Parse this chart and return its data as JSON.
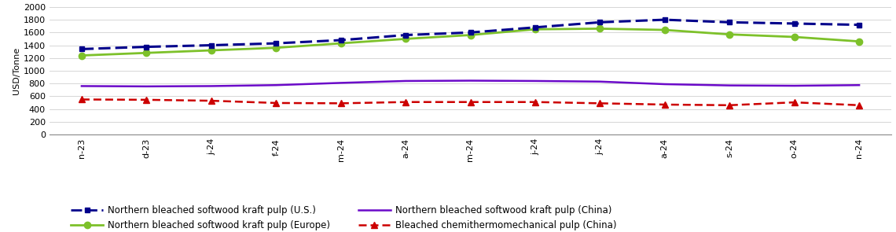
{
  "x_labels": [
    "n-23",
    "d-23",
    "j-24",
    "f-24",
    "m-24",
    "a-24",
    "m-24",
    "j-24",
    "j-24",
    "a-24",
    "s-24",
    "o-24",
    "n-24"
  ],
  "us_values": [
    1340,
    1375,
    1400,
    1430,
    1480,
    1560,
    1600,
    1680,
    1760,
    1800,
    1760,
    1740,
    1720
  ],
  "europe_values": [
    1240,
    1280,
    1320,
    1360,
    1430,
    1500,
    1560,
    1650,
    1660,
    1640,
    1570,
    1530,
    1460
  ],
  "china_values": [
    760,
    755,
    760,
    775,
    810,
    840,
    845,
    840,
    830,
    790,
    770,
    765,
    775
  ],
  "bctmp_values": [
    550,
    545,
    530,
    495,
    490,
    510,
    510,
    510,
    490,
    470,
    460,
    505,
    460
  ],
  "us_color": "#00008B",
  "europe_color": "#7DC12A",
  "china_color": "#6B0AC9",
  "bctmp_color": "#CC0000",
  "ylabel": "USD/Tonne",
  "ylim": [
    0,
    2000
  ],
  "yticks": [
    0,
    200,
    400,
    600,
    800,
    1000,
    1200,
    1400,
    1600,
    1800,
    2000
  ],
  "legend_us": "Northern bleached softwood kraft pulp (U.S.)",
  "legend_europe": "Northern bleached softwood kraft pulp (Europe)",
  "legend_china": "Northern bleached softwood kraft pulp (China)",
  "legend_bctmp": "Bleached chemithermomechanical pulp (China)"
}
